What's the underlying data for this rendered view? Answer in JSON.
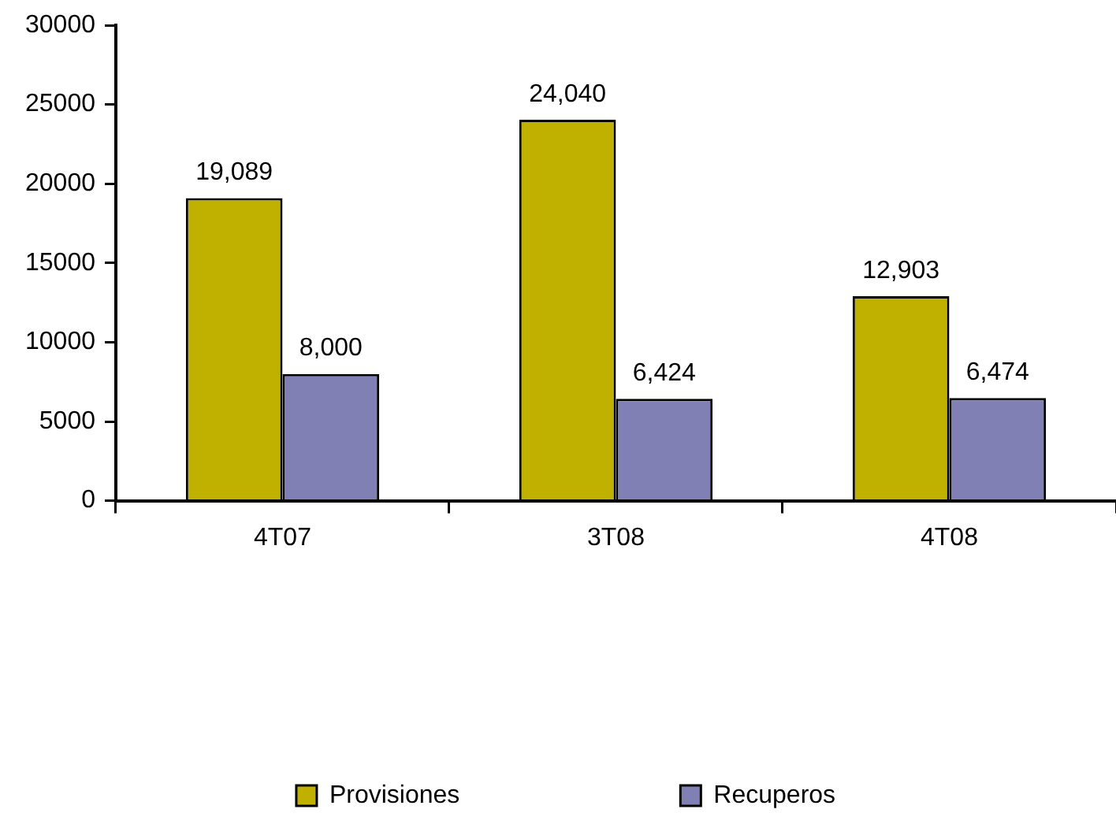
{
  "chart_data": {
    "type": "bar",
    "categories": [
      "4T07",
      "3T08",
      "4T08"
    ],
    "series": [
      {
        "name": "Provisiones",
        "color": "#c0b000",
        "values": [
          19089,
          24040,
          12903
        ],
        "value_labels": [
          "19,089",
          "24,040",
          "12,903"
        ]
      },
      {
        "name": "Recuperos",
        "color": "#8080b4",
        "values": [
          8000,
          6424,
          6474
        ],
        "value_labels": [
          "8,000",
          "6,424",
          "6,474"
        ]
      }
    ],
    "ylim": [
      0,
      30000
    ],
    "yticks": [
      0,
      5000,
      10000,
      15000,
      20000,
      25000,
      30000
    ],
    "grid": false,
    "legend": "bottom"
  }
}
